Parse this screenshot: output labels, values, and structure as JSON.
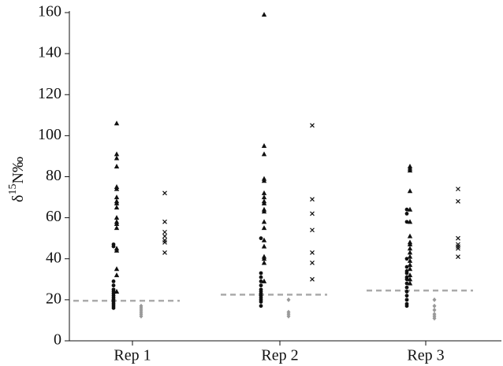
{
  "chart_data": {
    "type": "strip",
    "y_label": [
      "δ",
      "15",
      "N‰"
    ],
    "categories": [
      "Rep 1",
      "Rep 2",
      "Rep 3"
    ],
    "ylim": [
      0,
      160
    ],
    "yticks": [
      0,
      20,
      40,
      60,
      80,
      100,
      120,
      140,
      160
    ],
    "reference_lines": [
      19.5,
      22.5,
      24.5
    ],
    "reference_color": "#aaaaaa",
    "series": [
      {
        "marker": "circle",
        "color": "#111111",
        "values": [
          [
            47,
            46,
            29,
            27,
            25,
            24,
            23,
            22,
            21,
            20,
            19,
            18,
            17,
            16
          ],
          [
            50,
            33,
            31,
            29,
            27,
            25,
            24,
            23,
            22,
            21,
            20,
            19,
            17
          ],
          [
            64,
            62,
            58,
            40,
            36,
            34,
            33,
            31,
            30,
            28,
            26,
            24,
            22,
            20,
            18,
            17
          ]
        ]
      },
      {
        "marker": "triangle",
        "color": "#111111",
        "values": [
          [
            106,
            91,
            89,
            85,
            75,
            74,
            70,
            68,
            67,
            65,
            60,
            58,
            57,
            55,
            45,
            44,
            35,
            32,
            24
          ],
          [
            159,
            95,
            91,
            79,
            78,
            72,
            70,
            68,
            67,
            64,
            63,
            58,
            55,
            49,
            46,
            41,
            40,
            38,
            29
          ],
          [
            85,
            84,
            83,
            73,
            64,
            58,
            51,
            48,
            47,
            45,
            43,
            41,
            39,
            37,
            35,
            32,
            30,
            28
          ]
        ]
      },
      {
        "marker": "diamond",
        "color": "#999999",
        "values": [
          [
            17,
            16,
            15,
            14,
            13,
            12
          ],
          [
            20,
            14,
            13,
            12
          ],
          [
            20,
            17,
            15,
            13,
            12,
            11
          ]
        ]
      },
      {
        "marker": "cross",
        "color": "#111111",
        "values": [
          [
            72,
            58,
            53,
            51,
            49,
            48,
            43
          ],
          [
            105,
            69,
            62,
            54,
            43,
            38,
            30
          ],
          [
            74,
            68,
            50,
            47,
            46,
            45,
            41
          ]
        ]
      }
    ]
  }
}
